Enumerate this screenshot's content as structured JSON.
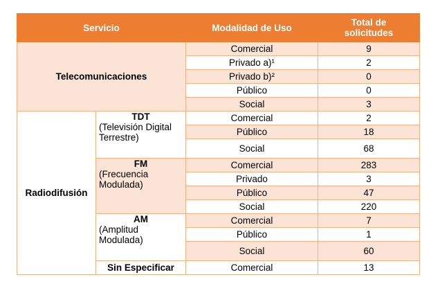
{
  "headers": {
    "servicio": "Servicio",
    "modalidad": "Modalidad de Uso",
    "total_line1": "Total de",
    "total_line2": "solicitudes"
  },
  "telecom": {
    "label": "Telecomunicaciones",
    "rows": [
      {
        "mod": "Comercial",
        "val": "9"
      },
      {
        "mod": "Privado a)¹",
        "val": "2"
      },
      {
        "mod": "Privado b)²",
        "val": "0"
      },
      {
        "mod": "Público",
        "val": "0"
      },
      {
        "mod": "Social",
        "val": "3"
      }
    ]
  },
  "radio": {
    "label": "Radiodifusión",
    "tdt": {
      "title": "TDT",
      "desc": "(Televisión Digital Terrestre)",
      "rows": [
        {
          "mod": "Comercial",
          "val": "2"
        },
        {
          "mod": "Público",
          "val": "18"
        },
        {
          "mod": "Social",
          "val": "68"
        }
      ]
    },
    "fm": {
      "title": "FM",
      "desc": "(Frecuencia Modulada)",
      "rows": [
        {
          "mod": "Comercial",
          "val": "283"
        },
        {
          "mod": "Privado",
          "val": "3"
        },
        {
          "mod": "Público",
          "val": "47"
        },
        {
          "mod": "Social",
          "val": "220"
        }
      ]
    },
    "am": {
      "title": "AM",
      "desc": "(Amplitud Modulada)",
      "rows": [
        {
          "mod": "Comercial",
          "val": "7"
        },
        {
          "mod": "Público",
          "val": "1"
        },
        {
          "mod": "Social",
          "val": "60"
        }
      ]
    },
    "sin": {
      "title": "Sin Especificar",
      "rows": [
        {
          "mod": "Comercial",
          "val": "13"
        }
      ]
    }
  },
  "colors": {
    "header_bg": "#ed7d31",
    "band": "#fbe4d5",
    "border": "#f4b183"
  }
}
